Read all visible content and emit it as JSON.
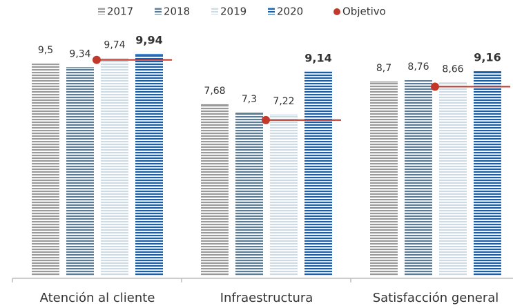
{
  "chart_data": {
    "type": "bar",
    "categories": [
      "Atención al cliente",
      "Infraestructura",
      "Satisfacción general"
    ],
    "series": [
      {
        "name": "2017",
        "color": "#9a9a9a",
        "values": [
          9.5,
          7.68,
          8.7
        ],
        "value_labels": [
          "9,5",
          "7,68",
          "8,7"
        ]
      },
      {
        "name": "2018",
        "color": "#5b7a93",
        "values": [
          9.34,
          7.3,
          8.76
        ],
        "value_labels": [
          "9,34",
          "7,3",
          "8,76"
        ]
      },
      {
        "name": "2019",
        "color": "#cfdbe3",
        "values": [
          9.74,
          7.22,
          8.66
        ],
        "value_labels": [
          "9,74",
          "7,22",
          "8,66"
        ]
      },
      {
        "name": "2020",
        "color": "#1a5fa6",
        "values": [
          9.94,
          9.14,
          9.16
        ],
        "value_labels": [
          "9,94",
          "9,14",
          "9,16"
        ],
        "font_weight": "bold"
      }
    ],
    "target": {
      "name": "Objetivo",
      "color": "#c0392b",
      "values": [
        9.7,
        7,
        8.5
      ]
    },
    "ylim": [
      0,
      10
    ]
  }
}
